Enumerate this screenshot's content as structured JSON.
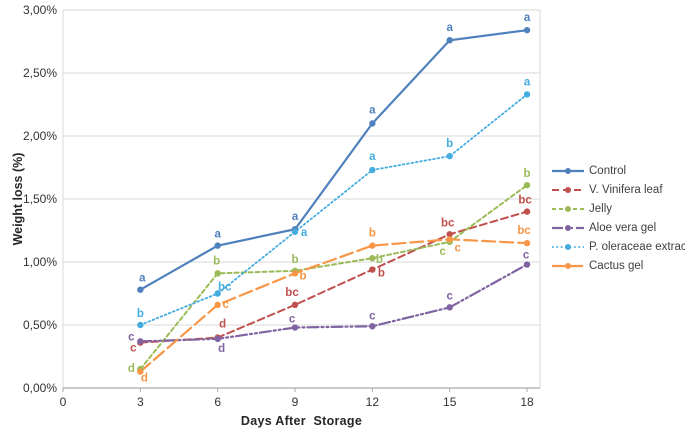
{
  "figure": {
    "y_axis_title": "Weight loss (%)",
    "x_axis_title": "Days After  Storage",
    "y_tick_labels": [
      "0,00%",
      "0,50%",
      "1,00%",
      "1,50%",
      "2,00%",
      "2,50%",
      "3,00%"
    ],
    "x_tick_labels": [
      "0",
      "3",
      "6",
      "9",
      "12",
      "15",
      "18"
    ]
  },
  "chart_data": {
    "type": "line",
    "x": [
      3,
      6,
      9,
      12,
      15,
      18
    ],
    "xlabel": "Days After  Storage",
    "ylabel": "Weight loss (%)",
    "ylim": [
      0,
      3
    ],
    "y_tick_step_percent": 0.5,
    "y_tick_format": "comma-decimal percent (e.g. 1,50%)",
    "x_ticks": [
      0,
      3,
      6,
      9,
      12,
      15,
      18
    ],
    "grid": "horizontal",
    "legend_position": "right",
    "point_labels_meaning": "statistical significance letters per day",
    "series": [
      {
        "name": "Control",
        "color": "#4F81BD",
        "line_style": "solid",
        "marker": "circle",
        "values": [
          0.78,
          1.13,
          1.26,
          2.1,
          2.76,
          2.84
        ],
        "sig_letters": [
          "a",
          "a",
          "a",
          "a",
          "a",
          "a"
        ]
      },
      {
        "name": "V. Vinifera leaf",
        "color": "#C0504D",
        "line_style": "dashed",
        "marker": "circle",
        "values": [
          0.36,
          0.4,
          0.66,
          0.94,
          1.22,
          1.4
        ],
        "sig_letters": [
          "c",
          "d",
          "bc",
          "b",
          "bc",
          "bc"
        ]
      },
      {
        "name": "Jelly",
        "color": "#9BBB59",
        "line_style": "short-dash",
        "marker": "circle",
        "values": [
          0.15,
          0.91,
          0.93,
          1.03,
          1.16,
          1.61
        ],
        "sig_letters": [
          "d",
          "b",
          "b",
          "b",
          "c",
          "b"
        ]
      },
      {
        "name": "Aloe vera gel",
        "color": "#8064A2",
        "line_style": "dash-dot-dot",
        "marker": "circle",
        "values": [
          0.37,
          0.39,
          0.48,
          0.49,
          0.64,
          0.98
        ],
        "sig_letters": [
          "c",
          "d",
          "c",
          "c",
          "c",
          "c"
        ]
      },
      {
        "name": "P. oleraceae extract",
        "color": "#45ACDF",
        "line_style": "dotted",
        "marker": "circle",
        "values": [
          0.5,
          0.75,
          1.24,
          1.73,
          1.84,
          2.33
        ],
        "sig_letters": [
          "b",
          "bc",
          "a",
          "a",
          "b",
          "a"
        ]
      },
      {
        "name": "Cactus gel",
        "color": "#F79646",
        "line_style": "long-dash",
        "marker": "circle",
        "values": [
          0.13,
          0.66,
          0.91,
          1.13,
          1.18,
          1.15
        ],
        "sig_letters": [
          "d",
          "c",
          "b",
          "b",
          "c",
          "bc"
        ]
      }
    ]
  }
}
